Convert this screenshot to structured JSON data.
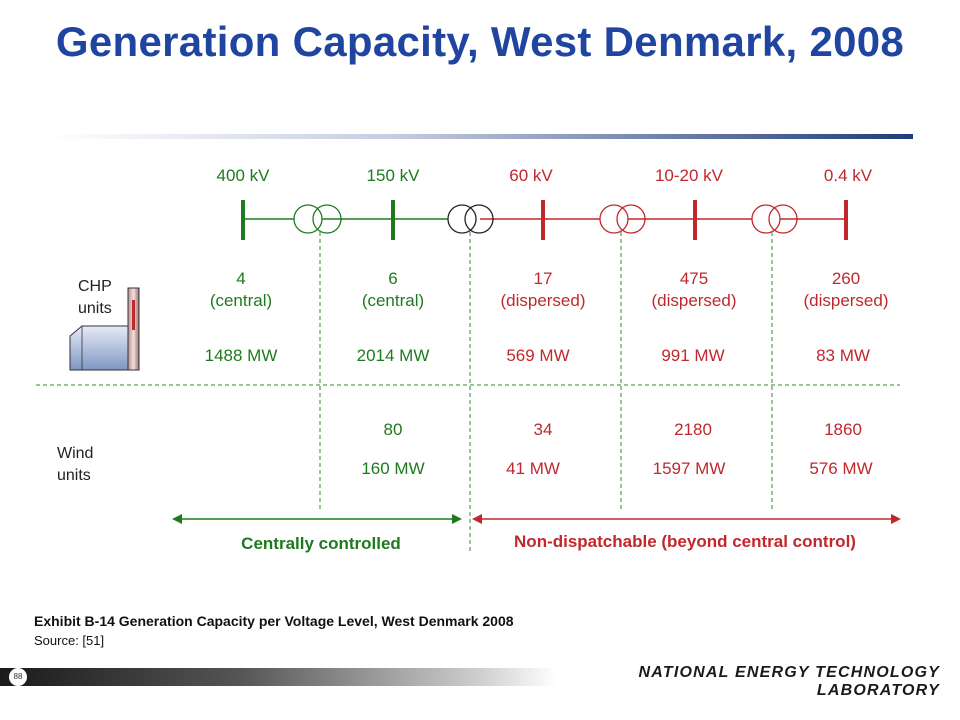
{
  "title": "Generation Capacity, West Denmark, 2008",
  "voltage_levels": [
    {
      "kv": "400 kV",
      "count": "4",
      "type": "(central)",
      "chp_mw": "1488 MW",
      "wind_count": "",
      "wind_mw": "",
      "color": "#1f7a1f"
    },
    {
      "kv": "150 kV",
      "count": "6",
      "type": "(central)",
      "chp_mw": "2014 MW",
      "wind_count": "80",
      "wind_mw": "160 MW",
      "color": "#1f7a1f"
    },
    {
      "kv": "60 kV",
      "count": "17",
      "type": "(dispersed)",
      "chp_mw": "569 MW",
      "wind_count": "34",
      "wind_mw": "41 MW",
      "color": "#c0282d"
    },
    {
      "kv": "10-20 kV",
      "count": "475",
      "type": "(dispersed)",
      "chp_mw": "991 MW",
      "wind_count": "2180",
      "wind_mw": "1597 MW",
      "color": "#c0282d"
    },
    {
      "kv": "0.4 kV",
      "count": "260",
      "type": "(dispersed)",
      "chp_mw": "83 MW",
      "wind_count": "1860",
      "wind_mw": "576 MW",
      "color": "#c0282d"
    }
  ],
  "chp_label": [
    "CHP",
    "units"
  ],
  "wind_label": [
    "Wind",
    "units"
  ],
  "central_label": "Centrally controlled",
  "nondispatch_label": "Non-dispatchable (beyond central control)",
  "caption": "Exhibit B-14  Generation Capacity per Voltage Level, West Denmark 2008",
  "source": "Source: [51]",
  "footer": "NATIONAL ENERGY TECHNOLOGY LABORATORY",
  "page_number": "88",
  "colors": {
    "title": "#1f45a0",
    "central": "#1f7a1f",
    "dispersed": "#c0282d",
    "divider": "#2e8b2e"
  }
}
